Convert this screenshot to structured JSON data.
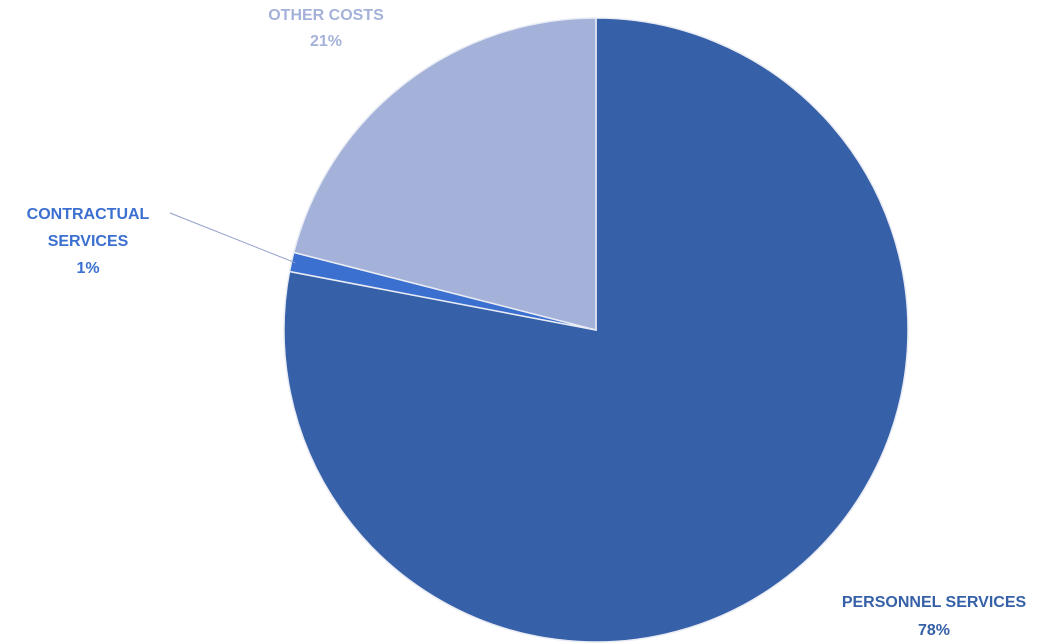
{
  "chart_data": {
    "type": "pie",
    "title": "",
    "slices": [
      {
        "key": "personnel",
        "label_lines": [
          "PERSONNEL SERVICES"
        ],
        "percent_label": "78%",
        "value": 78,
        "color": "#3660a8",
        "text_color": "#3660a8"
      },
      {
        "key": "contractual",
        "label_lines": [
          "CONTRACTUAL",
          "SERVICES"
        ],
        "percent_label": "1%",
        "value": 1,
        "color": "#3b6fd0",
        "text_color": "#3b6fd0"
      },
      {
        "key": "other",
        "label_lines": [
          "OTHER COSTS"
        ],
        "percent_label": "21%",
        "value": 21,
        "color": "#a4b2da",
        "text_color": "#a4b2da"
      }
    ],
    "legend": "none",
    "start_angle": "12 o'clock",
    "direction": "clockwise"
  }
}
